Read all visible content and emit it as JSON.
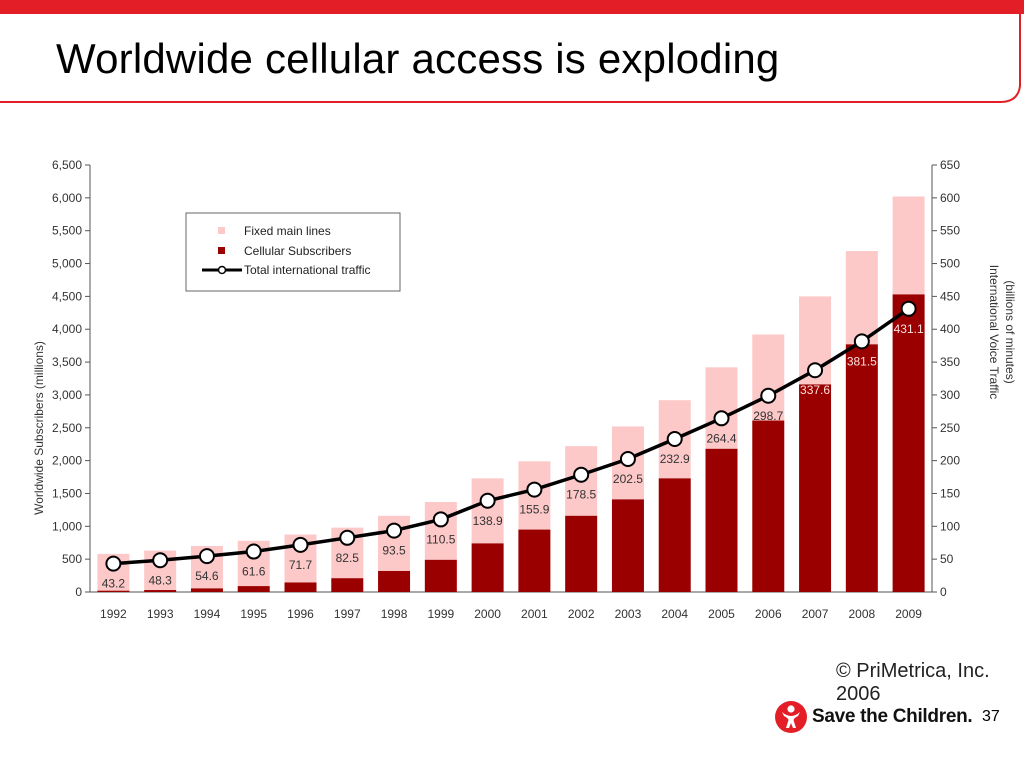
{
  "slide": {
    "title": "Worldwide cellular access is exploding",
    "copyright": "© PriMetrica, Inc. 2006",
    "logo_text": "Save the Children.",
    "page_number": "37"
  },
  "colors": {
    "accent": "#e41e26",
    "fixed": "#fdc8c8",
    "cellular": "#9b0000",
    "traffic_line": "#000000"
  },
  "chart_data": {
    "type": "bar",
    "categories": [
      "1992",
      "1993",
      "1994",
      "1995",
      "1996",
      "1997",
      "1998",
      "1999",
      "2000",
      "2001",
      "2002",
      "2003",
      "2004",
      "2005",
      "2006",
      "2007",
      "2008",
      "2009"
    ],
    "stacked": true,
    "series": [
      {
        "name": "Cellular Subscribers",
        "axis": "left",
        "values": [
          20,
          30,
          55,
          90,
          145,
          210,
          320,
          490,
          740,
          950,
          1160,
          1410,
          1730,
          2180,
          2610,
          3160,
          3770,
          4530
        ]
      },
      {
        "name": "Fixed main lines",
        "axis": "left",
        "values": [
          560,
          600,
          645,
          690,
          730,
          770,
          840,
          880,
          990,
          1040,
          1060,
          1110,
          1190,
          1240,
          1310,
          1340,
          1420,
          1490
        ]
      },
      {
        "name": "Total international traffic",
        "type": "line",
        "axis": "right",
        "values": [
          43.2,
          48.3,
          54.6,
          61.6,
          71.7,
          82.5,
          93.5,
          110.5,
          138.9,
          155.9,
          178.5,
          202.5,
          232.9,
          264.4,
          298.7,
          337.6,
          381.5,
          431.1
        ],
        "labels": [
          "43.2",
          "48.3",
          "54.6",
          "61.6",
          "71.7",
          "82.5",
          "93.5",
          "110.5",
          "138.9",
          "155.9",
          "178.5",
          "202.5",
          "232.9",
          "264.4",
          "298.7",
          "337.6",
          "381.5",
          "431.1"
        ]
      }
    ],
    "left_ticks": [
      "0",
      "500",
      "1,000",
      "1,500",
      "2,000",
      "2,500",
      "3,000",
      "3,500",
      "4,000",
      "4,500",
      "5,000",
      "5,500",
      "6,000",
      "6,500"
    ],
    "right_ticks": [
      "0",
      "50",
      "100",
      "150",
      "200",
      "250",
      "300",
      "350",
      "400",
      "450",
      "500",
      "550",
      "600",
      "650"
    ],
    "ylabel_left": "Worldwide Subscribers (millions)",
    "ylabel_right": "International Voice Traffic (billions of minutes)",
    "ylim_left": [
      0,
      6500
    ],
    "ylim_right": [
      0,
      650
    ],
    "legend_position": "top-left",
    "grid": false
  }
}
